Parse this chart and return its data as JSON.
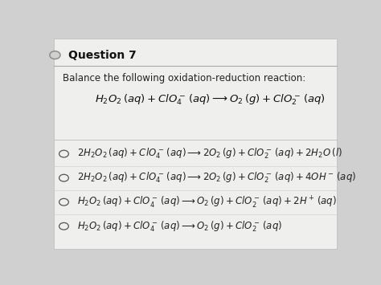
{
  "bg_color": "#d0d0d0",
  "card_color": "#efefed",
  "title": "Question 7",
  "subtitle": "Balance the following oxidation-reduction reaction:",
  "main_equation": "$H_2O_2\\,(aq) + ClO_4^-\\,(aq) \\longrightarrow O_2\\,(g) + ClO_2^-\\,(aq)$",
  "options": [
    "$2H_2O_2\\,(aq) + ClO_4^-\\,(aq) \\longrightarrow 2O_2\\,(g) + ClO_2^-\\,(aq) + 2H_2O\\,(l)$",
    "$2H_2O_2\\,(aq) + ClO_4^-\\,(aq) \\longrightarrow 2O_2\\,(g) + ClO_2^-\\,(aq) + 4OH^-\\,(aq)$",
    "$H_2O_2\\,(aq) + ClO_4^-\\,(aq) \\longrightarrow O_2\\,(g) + ClO_2^-\\,(aq) + 2H^+\\,(aq)$",
    "$H_2O_2\\,(aq) + ClO_4^-\\,(aq) \\longrightarrow O_2\\,(g) + ClO_2^-\\,(aq)$"
  ],
  "title_fontsize": 10,
  "subtitle_fontsize": 8.5,
  "eq_fontsize": 9.5,
  "option_fontsize": 8.5,
  "circle_color": "#d0d0d0"
}
